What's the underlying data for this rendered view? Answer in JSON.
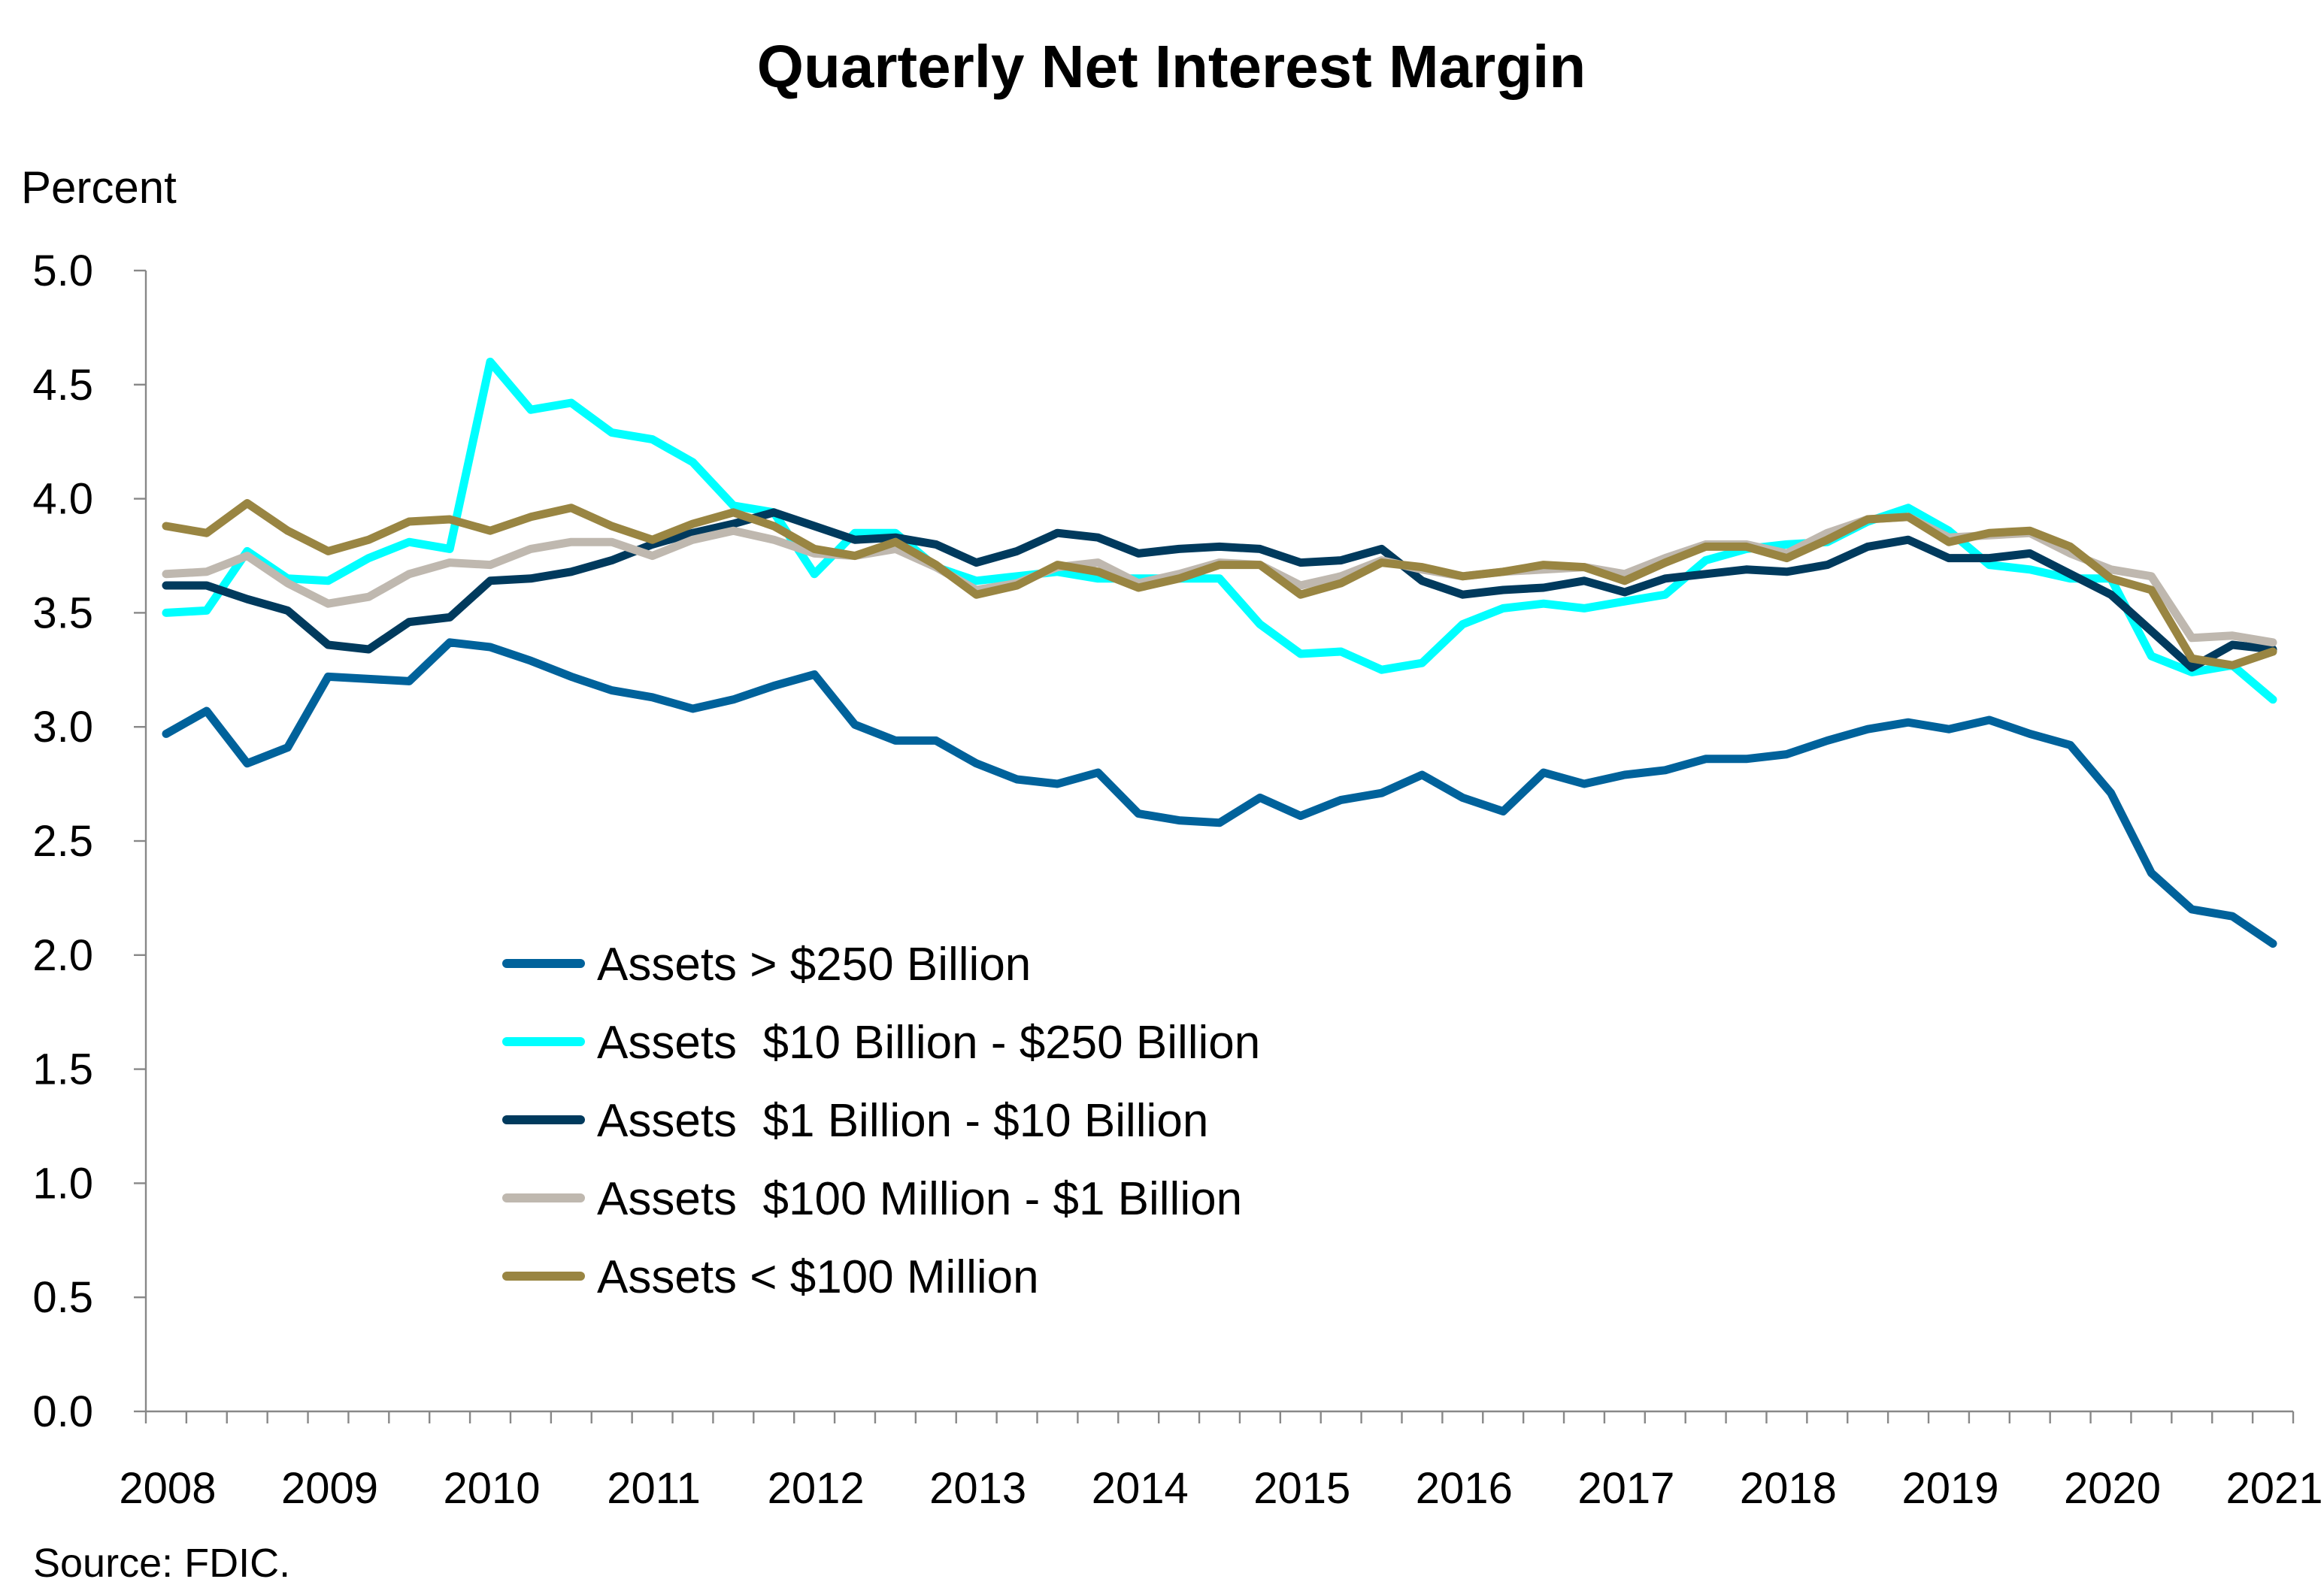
{
  "chart_data": {
    "type": "line",
    "title": "Quarterly Net Interest Margin",
    "ylabel": "Percent",
    "xlabel": "",
    "source": "Source: FDIC.",
    "ylim": [
      0,
      5
    ],
    "yticks": [
      "0.0",
      "0.5",
      "1.0",
      "1.5",
      "2.0",
      "2.5",
      "3.0",
      "3.5",
      "4.0",
      "4.5",
      "5.0"
    ],
    "xtick_labels": [
      "2008",
      "2009",
      "2010",
      "2011",
      "2012",
      "2013",
      "2014",
      "2015",
      "2016",
      "2017",
      "2018",
      "2019",
      "2020",
      "2021"
    ],
    "x_start": "2008 Q1",
    "x_frequency": "quarterly",
    "grid": false,
    "legend_position": "center-left",
    "series": [
      {
        "name": "Assets > $250 Billion",
        "color": "#00629B",
        "values": [
          2.97,
          3.07,
          2.84,
          2.91,
          3.22,
          3.21,
          3.2,
          3.37,
          3.35,
          3.29,
          3.22,
          3.16,
          3.13,
          3.08,
          3.12,
          3.18,
          3.23,
          3.01,
          2.94,
          2.94,
          2.84,
          2.77,
          2.75,
          2.8,
          2.62,
          2.59,
          2.58,
          2.69,
          2.61,
          2.68,
          2.71,
          2.79,
          2.69,
          2.63,
          2.8,
          2.75,
          2.79,
          2.81,
          2.86,
          2.86,
          2.88,
          2.94,
          2.99,
          3.02,
          2.99,
          3.03,
          2.97,
          2.92,
          2.71,
          2.36,
          2.2,
          2.17,
          2.05
        ]
      },
      {
        "name": "Assets  $10 Billion - $250 Billion",
        "color": "#00FFFF",
        "values": [
          3.5,
          3.51,
          3.77,
          3.65,
          3.64,
          3.74,
          3.81,
          3.78,
          4.6,
          4.39,
          4.42,
          4.29,
          4.26,
          4.16,
          3.97,
          3.94,
          3.67,
          3.85,
          3.85,
          3.7,
          3.64,
          3.66,
          3.68,
          3.65,
          3.65,
          3.65,
          3.65,
          3.45,
          3.32,
          3.33,
          3.25,
          3.28,
          3.45,
          3.52,
          3.54,
          3.52,
          3.55,
          3.58,
          3.73,
          3.78,
          3.8,
          3.81,
          3.9,
          3.96,
          3.86,
          3.71,
          3.69,
          3.65,
          3.65,
          3.31,
          3.24,
          3.27,
          3.12
        ]
      },
      {
        "name": "Assets  $1 Billion - $10 Billion",
        "color": "#003A5D",
        "values": [
          3.62,
          3.62,
          3.56,
          3.51,
          3.36,
          3.34,
          3.46,
          3.48,
          3.64,
          3.65,
          3.68,
          3.73,
          3.8,
          3.85,
          3.89,
          3.94,
          3.88,
          3.82,
          3.83,
          3.8,
          3.72,
          3.77,
          3.85,
          3.83,
          3.76,
          3.78,
          3.79,
          3.78,
          3.72,
          3.73,
          3.78,
          3.64,
          3.58,
          3.6,
          3.61,
          3.64,
          3.59,
          3.65,
          3.67,
          3.69,
          3.68,
          3.71,
          3.79,
          3.82,
          3.74,
          3.74,
          3.76,
          3.67,
          3.58,
          3.42,
          3.26,
          3.36,
          3.34
        ]
      },
      {
        "name": "Assets  $100 Million - $1 Billion",
        "color": "#BFB8AF",
        "values": [
          3.67,
          3.68,
          3.75,
          3.63,
          3.54,
          3.57,
          3.67,
          3.72,
          3.71,
          3.78,
          3.81,
          3.81,
          3.75,
          3.82,
          3.86,
          3.82,
          3.76,
          3.75,
          3.78,
          3.7,
          3.6,
          3.63,
          3.7,
          3.72,
          3.63,
          3.67,
          3.72,
          3.71,
          3.62,
          3.66,
          3.73,
          3.69,
          3.66,
          3.68,
          3.69,
          3.7,
          3.67,
          3.74,
          3.8,
          3.8,
          3.76,
          3.85,
          3.91,
          3.92,
          3.83,
          3.84,
          3.85,
          3.76,
          3.69,
          3.66,
          3.39,
          3.4,
          3.37
        ]
      },
      {
        "name": "Assets < $100 Million",
        "color": "#998542",
        "values": [
          3.88,
          3.85,
          3.98,
          3.86,
          3.77,
          3.82,
          3.9,
          3.91,
          3.86,
          3.92,
          3.96,
          3.88,
          3.82,
          3.89,
          3.94,
          3.88,
          3.78,
          3.75,
          3.81,
          3.71,
          3.58,
          3.62,
          3.71,
          3.68,
          3.61,
          3.65,
          3.71,
          3.71,
          3.58,
          3.63,
          3.72,
          3.7,
          3.66,
          3.68,
          3.71,
          3.7,
          3.64,
          3.72,
          3.79,
          3.79,
          3.74,
          3.82,
          3.91,
          3.92,
          3.81,
          3.85,
          3.86,
          3.79,
          3.65,
          3.6,
          3.3,
          3.27,
          3.33
        ]
      }
    ]
  }
}
